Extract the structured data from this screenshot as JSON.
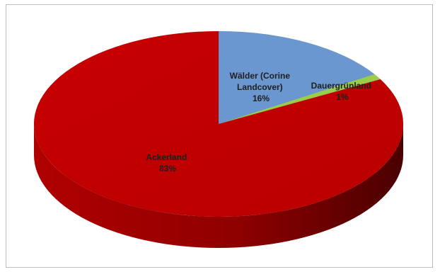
{
  "chart_data": {
    "type": "pie",
    "style": "3d",
    "categories": [
      "Wälder (Corine Landcover)",
      "Dauergrünland",
      "Ackerland"
    ],
    "values": [
      16,
      1,
      83
    ],
    "unit": "%",
    "colors": [
      "#6a97cf",
      "#9acd4a",
      "#c40000"
    ],
    "legend": "none",
    "data_labels": [
      {
        "lines": [
          "Wälder (Corine",
          "Landcover)",
          "16%"
        ]
      },
      {
        "lines": [
          "Dauergrünland",
          "1%"
        ]
      },
      {
        "lines": [
          "Ackerland",
          "83%"
        ]
      }
    ]
  }
}
